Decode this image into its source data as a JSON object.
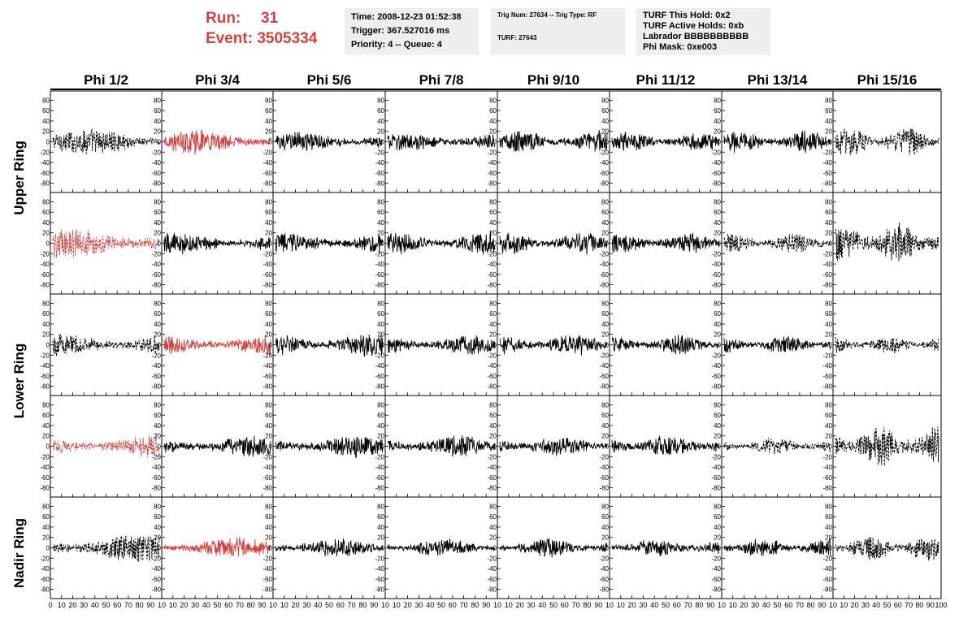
{
  "run": {
    "run_label": "Run:",
    "run_value": "31",
    "event_label": "Event:",
    "event_value": "3505334"
  },
  "info_time": {
    "line1": "Time: 2008-12-23 01:52:38",
    "line2": "Trigger: 367.527016 ms",
    "line3": "Priority: 4 -- Queue: 4"
  },
  "info_trig": {
    "line1": "Trig Num: 27634 -- Trig Type: RF",
    "line2": "TURF: 27643"
  },
  "info_turf": {
    "line1": "TURF This Hold: 0x2",
    "line2": "TURF Active Holds: 0xb",
    "line3": "Labrador BBBBBBBBBB",
    "line4": "Phi Mask: 0xe003"
  },
  "colors": {
    "highlight": "#cc4444",
    "normal": "#000000",
    "panel_bg": "#eeeeee"
  },
  "chart_data": {
    "type": "line",
    "columns": [
      "Phi 1/2",
      "Phi 3/4",
      "Phi 5/6",
      "Phi 7/8",
      "Phi 9/10",
      "Phi 11/12",
      "Phi 13/14",
      "Phi 15/16"
    ],
    "ring_labels": [
      "Upper Ring",
      "Lower Ring",
      "Nadir Ring"
    ],
    "rows": 5,
    "ylim": [
      -90,
      90
    ],
    "yticks": [
      -80,
      -60,
      -40,
      -20,
      0,
      20,
      40,
      60,
      80
    ],
    "xlim": [
      0,
      100
    ],
    "xtick_labels": [
      "0",
      "10",
      "20",
      "30",
      "40",
      "50",
      "60",
      "70",
      "80",
      "90",
      "10"
    ],
    "xtick_labels_last": [
      "0",
      "10",
      "20",
      "30",
      "40",
      "50",
      "60",
      "70",
      "80",
      "90",
      "100"
    ],
    "samples": 260,
    "panels": [
      [
        {
          "amp": 14,
          "style": "dashed",
          "color": "normal"
        },
        {
          "amp": 13,
          "style": "solid",
          "color": "highlight"
        },
        {
          "amp": 11,
          "style": "solid",
          "color": "normal"
        },
        {
          "amp": 10,
          "style": "solid",
          "color": "normal"
        },
        {
          "amp": 12,
          "style": "solid",
          "color": "normal"
        },
        {
          "amp": 10,
          "style": "solid",
          "color": "normal"
        },
        {
          "amp": 12,
          "style": "solid",
          "color": "normal"
        },
        {
          "amp": 16,
          "style": "dashed",
          "color": "normal"
        }
      ],
      [
        {
          "amp": 17,
          "style": "dashed",
          "color": "highlight"
        },
        {
          "amp": 12,
          "style": "solid",
          "color": "normal"
        },
        {
          "amp": 12,
          "style": "solid",
          "color": "normal"
        },
        {
          "amp": 13,
          "style": "solid",
          "color": "normal"
        },
        {
          "amp": 12,
          "style": "solid",
          "color": "normal"
        },
        {
          "amp": 11,
          "style": "solid",
          "color": "normal"
        },
        {
          "amp": 11,
          "style": "dashed",
          "color": "normal"
        },
        {
          "amp": 22,
          "style": "dashed",
          "color": "normal"
        }
      ],
      [
        {
          "amp": 14,
          "style": "dashed",
          "color": "normal"
        },
        {
          "amp": 12,
          "style": "solid",
          "color": "highlight"
        },
        {
          "amp": 13,
          "style": "solid",
          "color": "normal"
        },
        {
          "amp": 11,
          "style": "solid",
          "color": "normal"
        },
        {
          "amp": 12,
          "style": "solid",
          "color": "normal"
        },
        {
          "amp": 11,
          "style": "solid",
          "color": "normal"
        },
        {
          "amp": 10,
          "style": "solid",
          "color": "normal"
        },
        {
          "amp": 10,
          "style": "dashed",
          "color": "normal"
        }
      ],
      [
        {
          "amp": 13,
          "style": "dashed",
          "color": "highlight"
        },
        {
          "amp": 12,
          "style": "solid",
          "color": "normal"
        },
        {
          "amp": 12,
          "style": "solid",
          "color": "normal"
        },
        {
          "amp": 12,
          "style": "solid",
          "color": "normal"
        },
        {
          "amp": 11,
          "style": "solid",
          "color": "normal"
        },
        {
          "amp": 12,
          "style": "solid",
          "color": "normal"
        },
        {
          "amp": 9,
          "style": "dashed",
          "color": "normal"
        },
        {
          "amp": 22,
          "style": "dashed",
          "color": "normal"
        }
      ],
      [
        {
          "amp": 16,
          "style": "dashed",
          "color": "normal"
        },
        {
          "amp": 11,
          "style": "solid",
          "color": "highlight"
        },
        {
          "amp": 10,
          "style": "solid",
          "color": "normal"
        },
        {
          "amp": 10,
          "style": "solid",
          "color": "normal"
        },
        {
          "amp": 10,
          "style": "solid",
          "color": "normal"
        },
        {
          "amp": 10,
          "style": "solid",
          "color": "normal"
        },
        {
          "amp": 11,
          "style": "solid",
          "color": "normal"
        },
        {
          "amp": 14,
          "style": "dashed",
          "color": "normal"
        }
      ]
    ]
  }
}
